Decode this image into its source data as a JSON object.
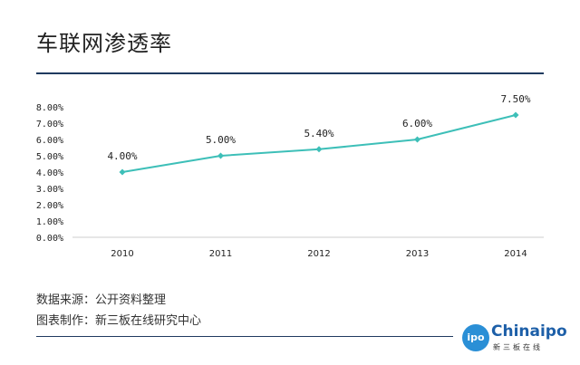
{
  "title": "车联网渗透率",
  "footer": {
    "source": "数据来源：公开资料整理",
    "producer": "图表制作：新三板在线研究中心"
  },
  "logo": {
    "circle_text": "ipo",
    "word": "Chinaipo",
    "sub": "新三板在线"
  },
  "colors": {
    "line": "#3dbfb8",
    "rule": "#1f3a5f",
    "text": "#222222"
  },
  "chart_data": {
    "type": "line",
    "categories": [
      "2010",
      "2011",
      "2012",
      "2013",
      "2014"
    ],
    "series": [
      {
        "values": [
          4.0,
          5.0,
          5.4,
          6.0,
          7.5
        ],
        "labels": [
          "4.00%",
          "5.00%",
          "5.40%",
          "6.00%",
          "7.50%"
        ]
      }
    ],
    "yticks": [
      "0.00%",
      "1.00%",
      "2.00%",
      "3.00%",
      "4.00%",
      "5.00%",
      "6.00%",
      "7.00%",
      "8.00%"
    ],
    "ylim": [
      0,
      8
    ],
    "grid": false,
    "legend": "none"
  }
}
